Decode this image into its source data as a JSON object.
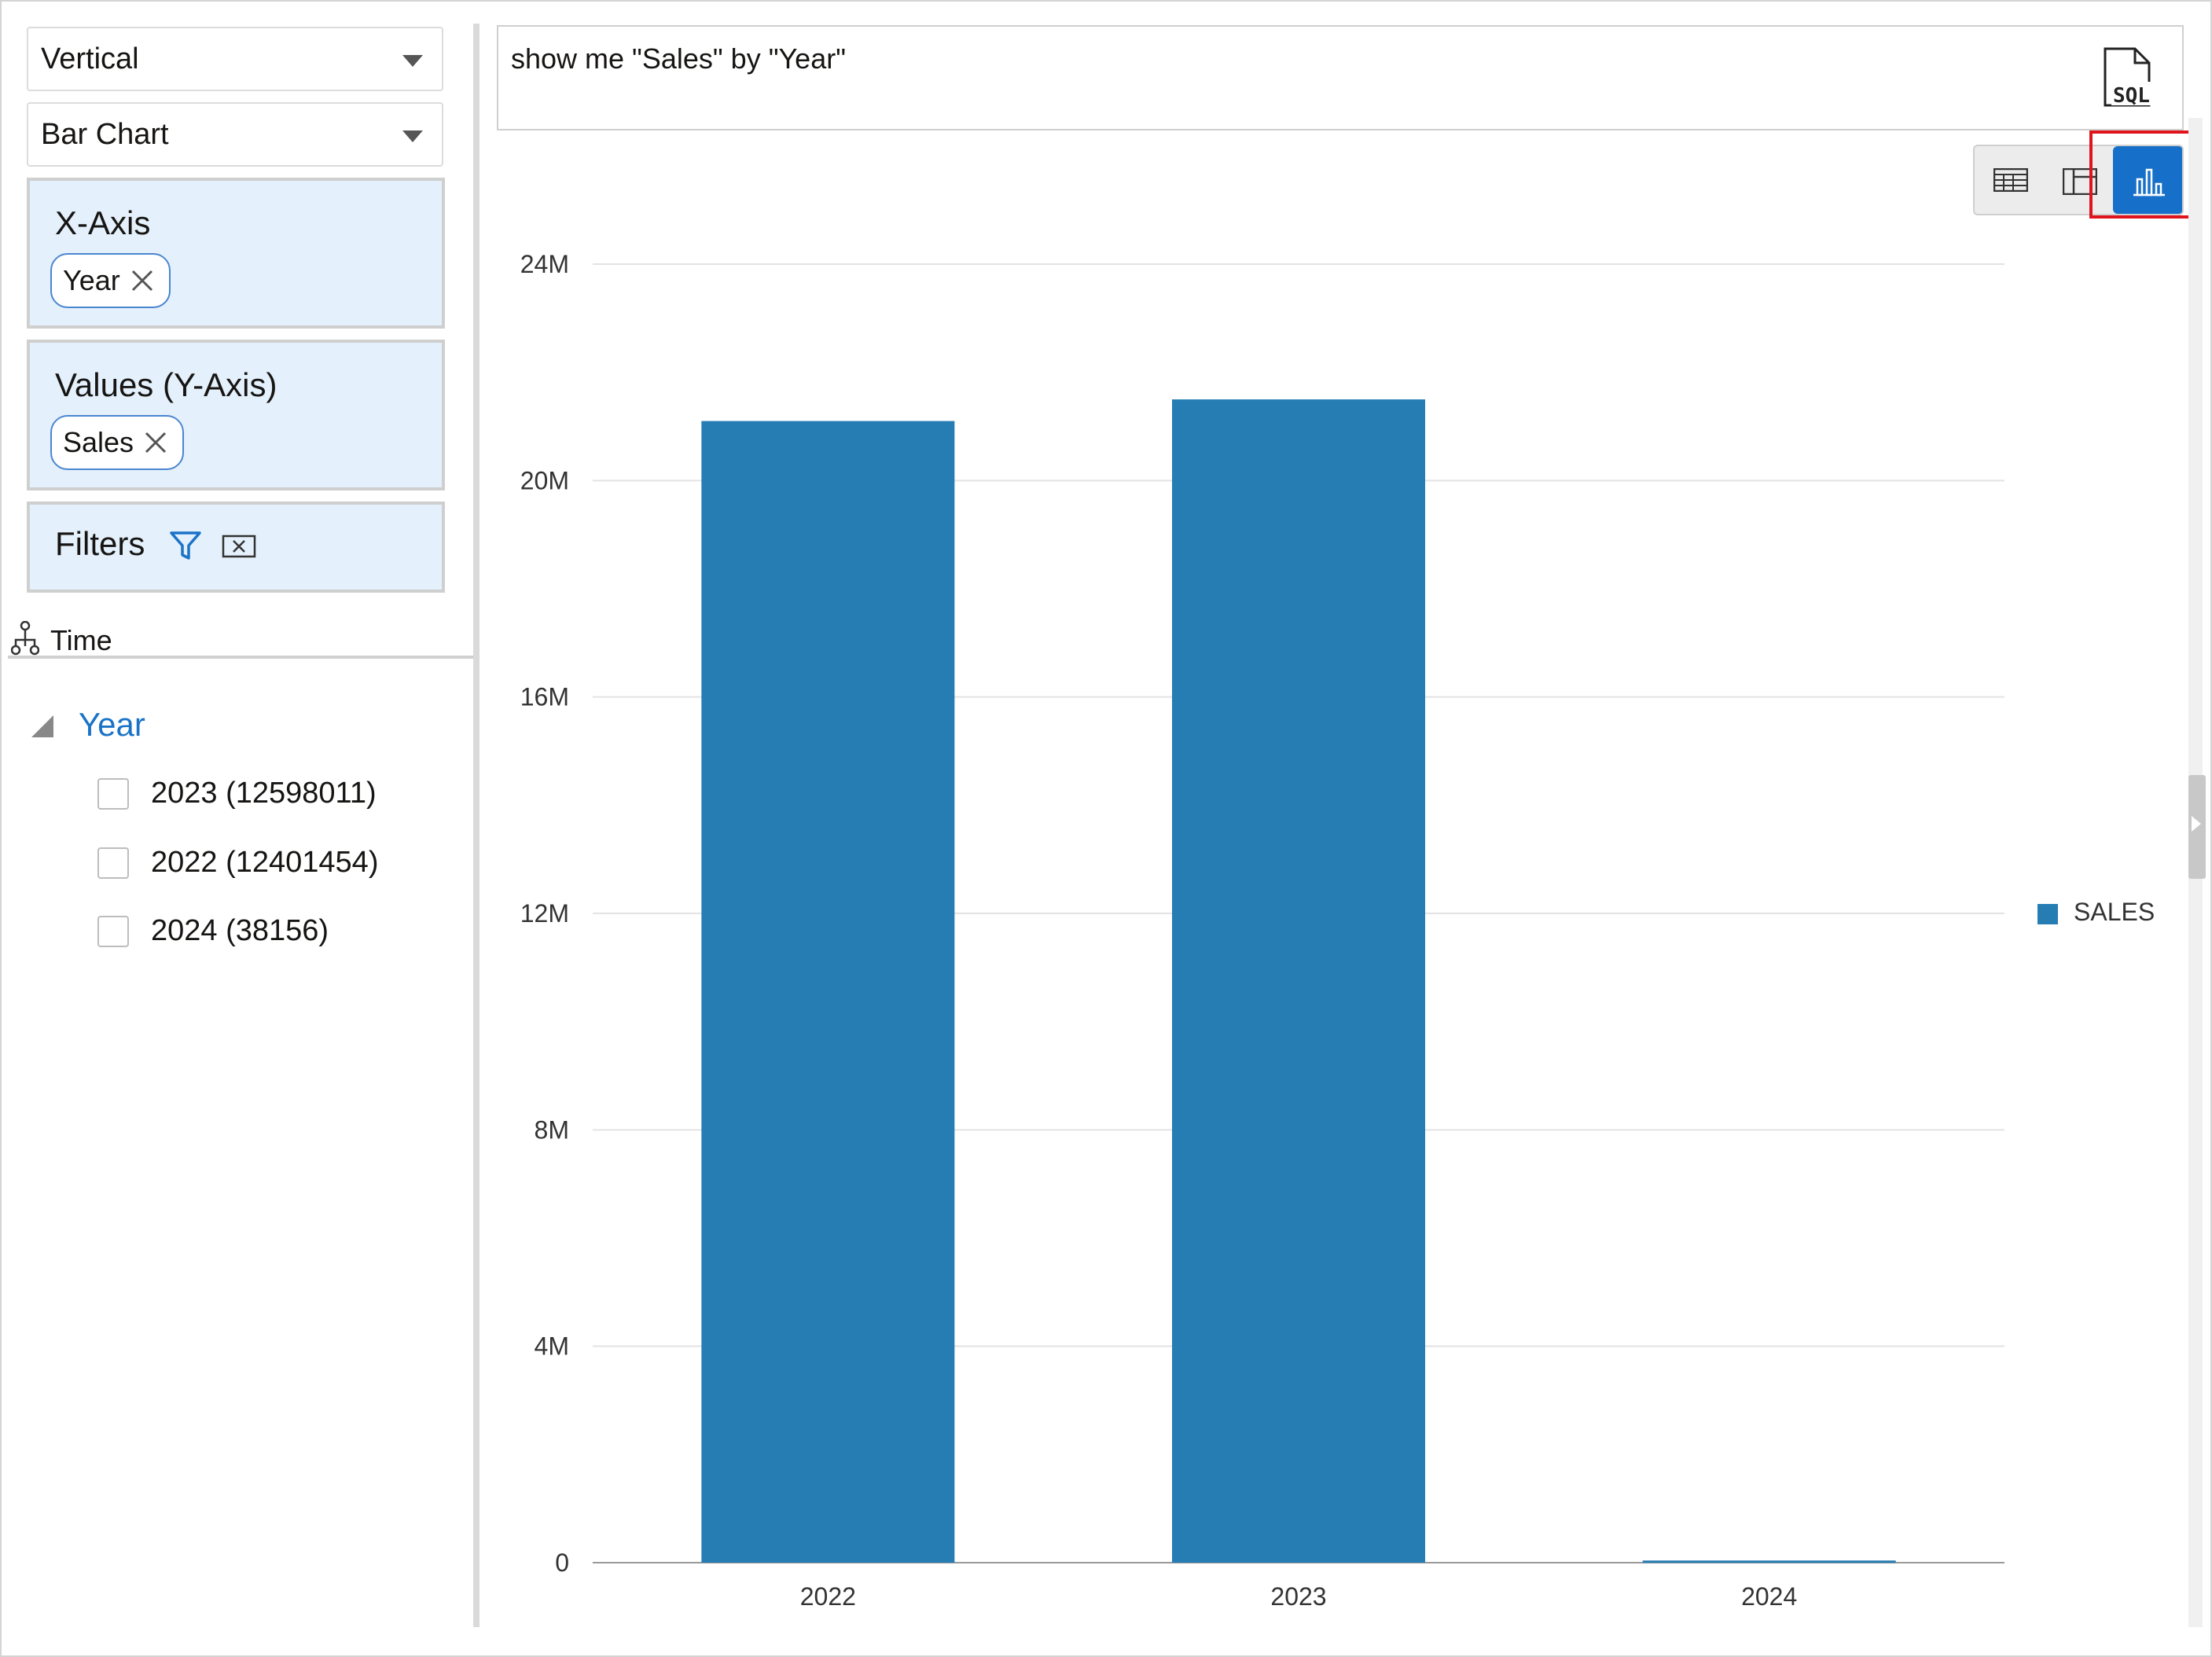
{
  "left_panel": {
    "orientation_select": {
      "value": "Vertical"
    },
    "chart_type_select": {
      "value": "Bar Chart"
    },
    "x_axis": {
      "title": "X-Axis",
      "chip": "Year"
    },
    "values": {
      "title": "Values (Y-Axis)",
      "chip": "Sales"
    },
    "filters": {
      "title": "Filters"
    },
    "hierarchy": {
      "label": "Time"
    },
    "filter_tree": {
      "node": "Year",
      "items": [
        {
          "label": "2023 (12598011)",
          "checked": false
        },
        {
          "label": "2022 (12401454)",
          "checked": false
        },
        {
          "label": "2024 (38156)",
          "checked": false
        }
      ]
    }
  },
  "query": {
    "text": "show me \"Sales\" by \"Year\""
  },
  "icons": {
    "sql": "sql-file-icon",
    "table_view": "table-icon",
    "pivot_view": "pivot-table-icon",
    "chart_view": "bar-chart-icon"
  },
  "view_toggle": {
    "selected": "chart"
  },
  "colors": {
    "bar": "#267db3",
    "accent": "#1670c9",
    "highlight": "#e0141c",
    "dropzone_bg": "#e4f0fb"
  },
  "chart_data": {
    "type": "bar",
    "categories": [
      "2022",
      "2023",
      "2024"
    ],
    "series": [
      {
        "name": "SALES",
        "values": [
          21100000,
          21500000,
          40000
        ]
      }
    ],
    "ylim": [
      0,
      24000000
    ],
    "yticks": [
      {
        "value": 0,
        "label": "0"
      },
      {
        "value": 4000000,
        "label": "4M"
      },
      {
        "value": 8000000,
        "label": "8M"
      },
      {
        "value": 12000000,
        "label": "12M"
      },
      {
        "value": 16000000,
        "label": "16M"
      },
      {
        "value": 20000000,
        "label": "20M"
      },
      {
        "value": 24000000,
        "label": "24M"
      }
    ],
    "grid": true,
    "legend_position": "right",
    "xlabel": "",
    "ylabel": ""
  }
}
